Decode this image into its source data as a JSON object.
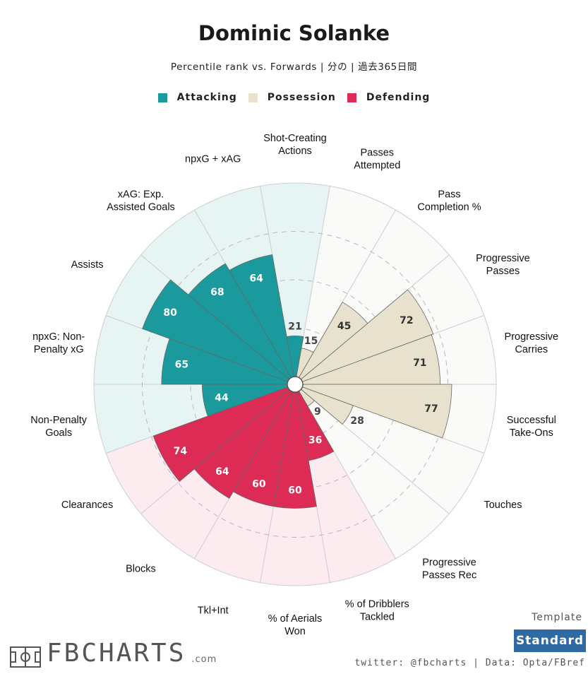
{
  "header": {
    "title": "Dominic Solanke",
    "subtitle": "Percentile rank vs. Forwards | 分の | 過去365日間"
  },
  "legend": [
    {
      "label": "Attacking",
      "color": "#1a9a9c"
    },
    {
      "label": "Possession",
      "color": "#e8e1cd"
    },
    {
      "label": "Defending",
      "color": "#dc2c55"
    }
  ],
  "chart_data": {
    "type": "polar-bar",
    "title": "Dominic Solanke",
    "range": [
      0,
      100
    ],
    "grid": true,
    "legend_position": "top-center",
    "categories": [
      "Shot-Creating Actions",
      "Passes Attempted",
      "Pass Completion %",
      "Progressive Passes",
      "Progressive Carries",
      "Successful Take-Ons",
      "Touches",
      "Progressive Passes Rec",
      "% of Dribblers Tackled",
      "% of Aerials Won",
      "Tkl+Int",
      "Blocks",
      "Clearances",
      "Non-Penalty Goals",
      "npxG: Non-Penalty xG",
      "Assists",
      "xAG: Exp. Assisted Goals",
      "npxG + xAG"
    ],
    "groups": [
      "Attacking",
      "Possession",
      "Possession",
      "Possession",
      "Possession",
      "Possession",
      "Possession",
      "Possession",
      "Defending",
      "Defending",
      "Defending",
      "Defending",
      "Defending",
      "Attacking",
      "Attacking",
      "Attacking",
      "Attacking",
      "Attacking"
    ],
    "values": [
      21,
      15,
      45,
      72,
      71,
      77,
      28,
      9,
      36,
      60,
      60,
      64,
      74,
      44,
      65,
      80,
      68,
      64
    ]
  },
  "footer": {
    "template_label": "Template",
    "template_button": "Standard",
    "credits": "twitter: @fbcharts | Data: Opta/FBref",
    "brand_name": "FBCHARTS",
    "brand_suffix": ".com"
  }
}
